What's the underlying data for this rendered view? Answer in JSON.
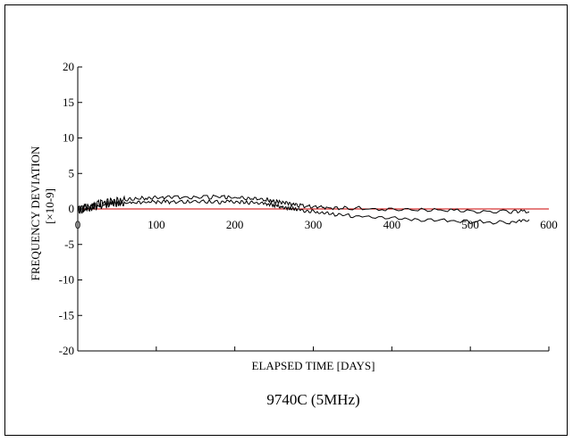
{
  "chart_data": {
    "type": "line",
    "title": "9740C (5MHz)",
    "xlabel": "ELAPSED TIME [DAYS]",
    "ylabel": "FREQUENCY DEVIATION",
    "ylabel_unit": "[×10-9]",
    "xlim": [
      0,
      600
    ],
    "ylim": [
      -20,
      20
    ],
    "x_ticks": [
      0,
      100,
      200,
      300,
      400,
      500,
      600
    ],
    "y_ticks": [
      20,
      15,
      10,
      5,
      0,
      -5,
      -10,
      -15,
      -20
    ],
    "grid": false,
    "zero_line": true,
    "colors": {
      "series": "#000000",
      "axis": "#000000",
      "zero_line": "#cc0000"
    },
    "series": [
      {
        "name": "",
        "x": [
          0,
          10,
          20,
          30,
          40,
          50,
          60,
          80,
          100,
          120,
          150,
          180,
          200,
          220,
          240,
          250,
          260,
          270,
          280,
          300,
          320,
          350,
          400,
          450,
          500,
          550,
          575
        ],
        "y": [
          0.0,
          0.2,
          0.5,
          0.8,
          1.0,
          1.1,
          1.3,
          1.5,
          1.6,
          1.6,
          1.6,
          1.7,
          1.6,
          1.5,
          1.3,
          1.1,
          0.9,
          0.7,
          0.5,
          0.3,
          0.2,
          0.1,
          0.0,
          -0.1,
          -0.3,
          -0.4,
          -0.4
        ]
      },
      {
        "name": "",
        "x": [
          0,
          10,
          20,
          30,
          40,
          50,
          60,
          80,
          100,
          120,
          150,
          180,
          200,
          220,
          240,
          250,
          260,
          270,
          280,
          300,
          320,
          350,
          400,
          450,
          500,
          550,
          575
        ],
        "y": [
          -0.2,
          0.0,
          0.3,
          0.5,
          0.6,
          0.7,
          0.8,
          0.9,
          1.0,
          1.0,
          1.0,
          1.0,
          1.0,
          0.9,
          0.7,
          0.5,
          0.3,
          0.1,
          -0.1,
          -0.4,
          -0.7,
          -1.0,
          -1.3,
          -1.6,
          -1.8,
          -1.9,
          -1.5
        ]
      }
    ]
  }
}
